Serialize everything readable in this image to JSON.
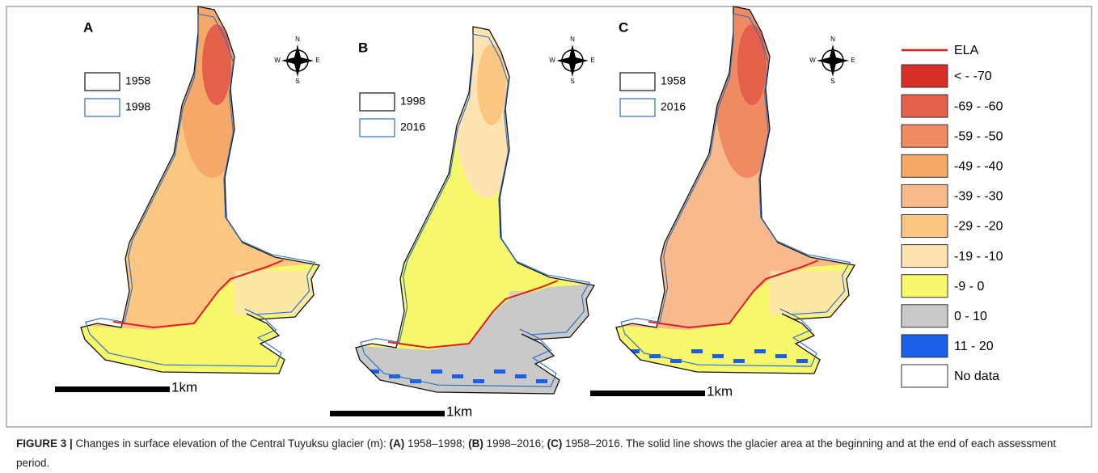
{
  "panels": [
    {
      "label": "A",
      "legend": [
        {
          "label": "1958",
          "color": "#111111"
        },
        {
          "label": "1998",
          "color": "#2f6fc0"
        }
      ],
      "scale_bar": "1km"
    },
    {
      "label": "B",
      "legend": [
        {
          "label": "1998",
          "color": "#111111"
        },
        {
          "label": "2016",
          "color": "#2f6fc0"
        }
      ],
      "scale_bar": "1km"
    },
    {
      "label": "C",
      "legend": [
        {
          "label": "1958",
          "color": "#111111"
        },
        {
          "label": "2016",
          "color": "#2f6fc0"
        }
      ],
      "scale_bar": "1km"
    }
  ],
  "compass": {
    "n": "N",
    "e": "E",
    "s": "S",
    "w": "W"
  },
  "legend": {
    "line": {
      "label": "ELA",
      "color": "#e0201c"
    },
    "classes": [
      {
        "label": "< - -70",
        "color": "#d7302a"
      },
      {
        "label": "-69 - -60",
        "color": "#e4604a"
      },
      {
        "label": "-59 - -50",
        "color": "#ef8a62"
      },
      {
        "label": "-49 - -40",
        "color": "#f5a868"
      },
      {
        "label": "-39 - -30",
        "color": "#f8ba8c"
      },
      {
        "label": "-29 - -20",
        "color": "#fbc682"
      },
      {
        "label": "-19 - -10",
        "color": "#fde4b2"
      },
      {
        "label": "-9 - 0",
        "color": "#f8f86c"
      },
      {
        "label": "0 - 10",
        "color": "#c9c9c9"
      },
      {
        "label": "11 - 20",
        "color": "#1b5ee8"
      },
      {
        "label": "No data",
        "color": "#ffffff"
      }
    ]
  },
  "caption": [
    {
      "text": "FIGURE 3 |",
      "bold": true
    },
    {
      "text": " Changes in surface elevation of the Central Tuyuksu glacier (m): ",
      "bold": false
    },
    {
      "text": "(A)",
      "bold": true
    },
    {
      "text": " 1958–1998; ",
      "bold": false
    },
    {
      "text": "(B)",
      "bold": true
    },
    {
      "text": " 1998–2016; ",
      "bold": false
    },
    {
      "text": "(C)",
      "bold": true
    },
    {
      "text": " 1958–2016. The solid line shows the glacier area at the beginning and at the end of each assessment period.",
      "bold": false
    }
  ]
}
